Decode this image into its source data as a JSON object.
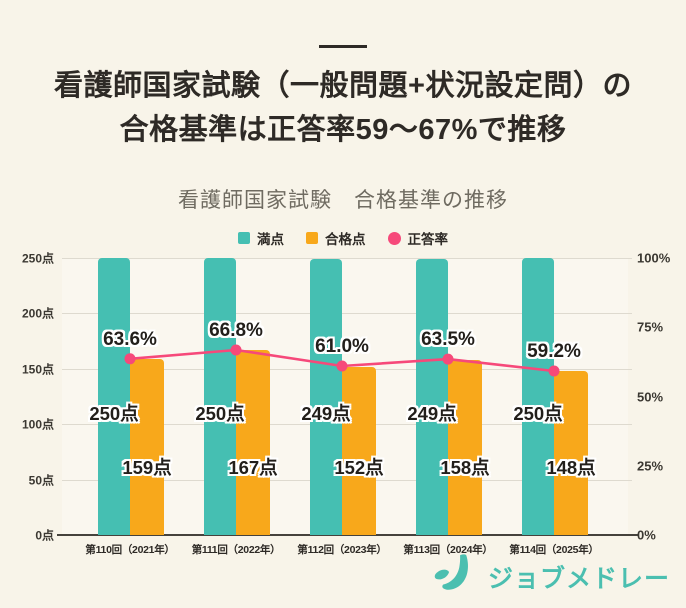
{
  "page": {
    "background_color": "#F8F4E9"
  },
  "title": {
    "line1": "看護師国家試験（一般問題+状況設定問）の",
    "line2": "合格基準は正答率59～67%で推移"
  },
  "chart": {
    "title": "看護師国家試験　合格基準の推移",
    "legend": [
      {
        "label": "満点",
        "color": "#45BFB2",
        "shape": "square"
      },
      {
        "label": "合格点",
        "color": "#F8A81B",
        "shape": "square"
      },
      {
        "label": "正答率",
        "color": "#F6497A",
        "shape": "circle"
      }
    ]
  },
  "chart_data": {
    "type": "bar",
    "categories": [
      "第110回（2021年）",
      "第111回（2022年）",
      "第112回（2023年）",
      "第113回（2024年）",
      "第114回（2025年）"
    ],
    "series": [
      {
        "name": "満点",
        "type": "bar",
        "axis": "left",
        "color": "#45BFB2",
        "values": [
          250,
          250,
          249,
          249,
          250
        ],
        "labels": [
          "250点",
          "250点",
          "249点",
          "249点",
          "250点"
        ]
      },
      {
        "name": "合格点",
        "type": "bar",
        "axis": "left",
        "color": "#F8A81B",
        "values": [
          159,
          167,
          152,
          158,
          148
        ],
        "labels": [
          "159点",
          "167点",
          "152点",
          "158点",
          "148点"
        ]
      },
      {
        "name": "正答率",
        "type": "line",
        "axis": "right",
        "color": "#F6497A",
        "values": [
          63.6,
          66.8,
          61.0,
          63.5,
          59.2
        ],
        "labels": [
          "63.6%",
          "66.8%",
          "61.0%",
          "63.5%",
          "59.2%"
        ]
      }
    ],
    "left_axis": {
      "ticks": [
        "0点",
        "50点",
        "100点",
        "150点",
        "200点",
        "250点"
      ],
      "min": 0,
      "max": 250,
      "grid": true
    },
    "right_axis": {
      "ticks": [
        "0%",
        "25%",
        "50%",
        "75%",
        "100%"
      ],
      "min": 0,
      "max": 100,
      "grid": false
    },
    "legend_position": "top"
  },
  "footer": {
    "logo_text": "ジョブメドレー",
    "logo_color": "#4BBFB0"
  }
}
